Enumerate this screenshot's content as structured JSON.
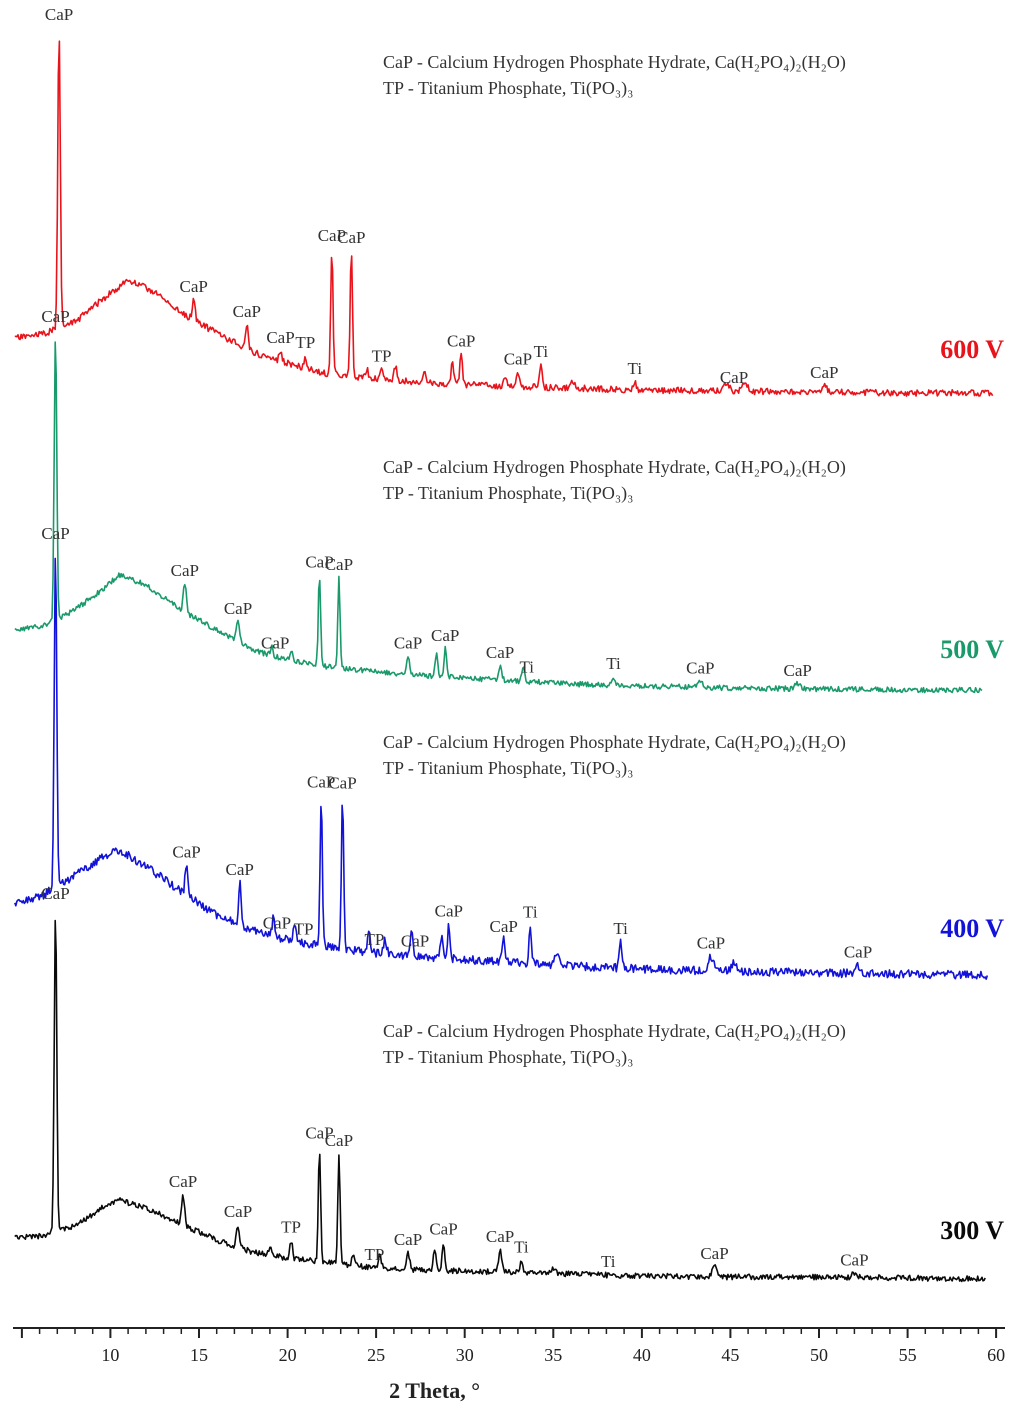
{
  "chart_data": {
    "type": "line",
    "xlabel": "2 Theta, °",
    "ylabel": "",
    "xlim": [
      4.5,
      60.5
    ],
    "x_ticks": [
      10,
      15,
      20,
      25,
      30,
      35,
      40,
      45,
      50,
      55,
      60
    ],
    "x_tick_labels": [
      "10",
      "15",
      "20",
      "25",
      "30",
      "35",
      "40",
      "45",
      "50",
      "55",
      "60"
    ],
    "legend_lines": [
      "CaP - Calcium Hydrogen Phosphate Hydrate, Ca(H₂PO₄)₂(H₂O)",
      "TP - Titanium Phosphate, Ti(PO₃)₃"
    ],
    "series": [
      {
        "name": "600 V",
        "color": "#e8131b",
        "x_range": [
          4.6,
          59.8
        ],
        "seed": 11,
        "noise": 3.2,
        "points": [
          [
            4.6,
            338
          ],
          [
            6.2,
            334
          ],
          [
            8,
            322
          ],
          [
            9.5,
            300
          ],
          [
            11,
            280
          ],
          [
            12.5,
            292
          ],
          [
            14,
            313
          ],
          [
            16,
            333
          ],
          [
            18,
            352
          ],
          [
            20,
            363
          ],
          [
            22,
            373
          ],
          [
            25,
            379
          ],
          [
            28,
            383
          ],
          [
            32,
            386
          ],
          [
            36,
            388
          ],
          [
            40,
            390
          ],
          [
            45,
            391
          ],
          [
            50,
            392
          ],
          [
            55,
            393
          ],
          [
            59.8,
            393
          ]
        ],
        "peaks": [
          [
            7.1,
            300,
            0.1
          ],
          [
            14.7,
            20,
            0.12
          ],
          [
            17.7,
            24,
            0.12
          ],
          [
            19.6,
            10,
            0.1
          ],
          [
            21.0,
            12,
            0.1
          ],
          [
            22.5,
            125,
            0.09
          ],
          [
            23.6,
            125,
            0.09
          ],
          [
            24.5,
            8,
            0.1
          ],
          [
            25.3,
            10,
            0.12
          ],
          [
            26.1,
            14,
            0.12
          ],
          [
            27.7,
            10,
            0.12
          ],
          [
            29.3,
            22,
            0.1
          ],
          [
            29.8,
            30,
            0.1
          ],
          [
            32.3,
            10,
            0.12
          ],
          [
            33.0,
            14,
            0.12
          ],
          [
            34.3,
            22,
            0.1
          ],
          [
            36.1,
            8,
            0.12
          ],
          [
            39.6,
            8,
            0.12
          ],
          [
            44.8,
            8,
            0.2
          ],
          [
            45.8,
            10,
            0.2
          ],
          [
            50.3,
            6,
            0.2
          ]
        ]
      },
      {
        "name": "500 V",
        "color": "#1a9a6b",
        "x_range": [
          4.6,
          59.2
        ],
        "seed": 23,
        "noise": 2.6,
        "points": [
          [
            4.6,
            630
          ],
          [
            6.2,
            626
          ],
          [
            8,
            610
          ],
          [
            9.5,
            590
          ],
          [
            10.5,
            575
          ],
          [
            12,
            585
          ],
          [
            14,
            610
          ],
          [
            16,
            630
          ],
          [
            18,
            650
          ],
          [
            20,
            660
          ],
          [
            22,
            666
          ],
          [
            25,
            672
          ],
          [
            28,
            676
          ],
          [
            32,
            680
          ],
          [
            36,
            684
          ],
          [
            40,
            686
          ],
          [
            45,
            688
          ],
          [
            50,
            689
          ],
          [
            55,
            690
          ],
          [
            59.2,
            690
          ]
        ],
        "peaks": [
          [
            6.9,
            290,
            0.1
          ],
          [
            14.2,
            28,
            0.12
          ],
          [
            17.2,
            20,
            0.12
          ],
          [
            19.1,
            10,
            0.1
          ],
          [
            20.2,
            10,
            0.1
          ],
          [
            21.8,
            90,
            0.09
          ],
          [
            22.9,
            90,
            0.09
          ],
          [
            26.8,
            18,
            0.12
          ],
          [
            28.4,
            22,
            0.1
          ],
          [
            28.9,
            28,
            0.1
          ],
          [
            32.0,
            14,
            0.12
          ],
          [
            33.3,
            16,
            0.12
          ],
          [
            38.4,
            8,
            0.12
          ],
          [
            43.3,
            6,
            0.2
          ],
          [
            48.8,
            5,
            0.2
          ]
        ]
      },
      {
        "name": "400 V",
        "color": "#1212d8",
        "x_range": [
          4.6,
          59.5
        ],
        "seed": 37,
        "noise": 4.2,
        "points": [
          [
            4.6,
            905
          ],
          [
            6.2,
            895
          ],
          [
            8,
            875
          ],
          [
            9.5,
            858
          ],
          [
            10.5,
            850
          ],
          [
            12,
            866
          ],
          [
            14,
            892
          ],
          [
            16,
            915
          ],
          [
            18,
            930
          ],
          [
            20,
            940
          ],
          [
            22,
            946
          ],
          [
            25,
            953
          ],
          [
            28,
            957
          ],
          [
            32,
            962
          ],
          [
            36,
            966
          ],
          [
            40,
            969
          ],
          [
            45,
            971
          ],
          [
            50,
            973
          ],
          [
            55,
            974
          ],
          [
            59.5,
            975
          ]
        ],
        "peaks": [
          [
            6.9,
            340,
            0.1
          ],
          [
            14.3,
            30,
            0.12
          ],
          [
            17.3,
            42,
            0.1
          ],
          [
            19.2,
            18,
            0.1
          ],
          [
            20.4,
            16,
            0.1
          ],
          [
            21.9,
            150,
            0.09
          ],
          [
            23.1,
            152,
            0.09
          ],
          [
            24.6,
            22,
            0.1
          ],
          [
            25.5,
            14,
            0.12
          ],
          [
            27.0,
            26,
            0.12
          ],
          [
            28.7,
            22,
            0.1
          ],
          [
            29.1,
            34,
            0.1
          ],
          [
            32.2,
            22,
            0.12
          ],
          [
            33.7,
            38,
            0.1
          ],
          [
            35.2,
            10,
            0.15
          ],
          [
            38.8,
            26,
            0.1
          ],
          [
            43.9,
            14,
            0.2
          ],
          [
            45.2,
            8,
            0.2
          ],
          [
            52.2,
            8,
            0.2
          ]
        ]
      },
      {
        "name": "300 V",
        "color": "#0a0a0a",
        "x_range": [
          4.6,
          59.4
        ],
        "seed": 53,
        "noise": 2.8,
        "points": [
          [
            4.6,
            1238
          ],
          [
            6.2,
            1236
          ],
          [
            8,
            1226
          ],
          [
            9.5,
            1208
          ],
          [
            10.5,
            1200
          ],
          [
            12,
            1208
          ],
          [
            14,
            1224
          ],
          [
            16,
            1240
          ],
          [
            18,
            1252
          ],
          [
            20,
            1258
          ],
          [
            22,
            1262
          ],
          [
            25,
            1268
          ],
          [
            28,
            1270
          ],
          [
            32,
            1272
          ],
          [
            36,
            1274
          ],
          [
            40,
            1276
          ],
          [
            45,
            1277
          ],
          [
            50,
            1277
          ],
          [
            55,
            1278
          ],
          [
            59.4,
            1279
          ]
        ],
        "peaks": [
          [
            6.9,
            325,
            0.1
          ],
          [
            14.1,
            30,
            0.12
          ],
          [
            17.2,
            22,
            0.12
          ],
          [
            19.0,
            8,
            0.1
          ],
          [
            20.2,
            18,
            0.1
          ],
          [
            21.8,
            115,
            0.09
          ],
          [
            22.9,
            110,
            0.09
          ],
          [
            23.7,
            10,
            0.1
          ],
          [
            25.2,
            12,
            0.12
          ],
          [
            26.8,
            16,
            0.12
          ],
          [
            28.3,
            22,
            0.1
          ],
          [
            28.8,
            28,
            0.1
          ],
          [
            32.0,
            22,
            0.12
          ],
          [
            33.2,
            12,
            0.12
          ],
          [
            35.0,
            6,
            0.15
          ],
          [
            44.1,
            10,
            0.2
          ],
          [
            52.0,
            4,
            0.2
          ]
        ]
      }
    ]
  },
  "legends": [
    {
      "series": "600 V",
      "lines": [
        "CaP - Calcium Hydrogen Phosphate Hydrate, Ca(H₂PO₄)₂(H₂O)",
        "TP - Titanium Phosphate, Ti(PO₃)₃"
      ]
    },
    {
      "series": "500 V",
      "lines": [
        "CaP - Calcium Hydrogen Phosphate Hydrate, Ca(H₂PO₄)₂(H₂O)",
        "TP - Titanium Phosphate, Ti(PO₃)₃"
      ]
    },
    {
      "series": "400 V",
      "lines": [
        "CaP - Calcium Hydrogen Phosphate Hydrate, Ca(H₂PO₄)₂(H₂O)",
        "TP - Titanium Phosphate, Ti(PO₃)₃"
      ]
    },
    {
      "series": "300 V",
      "lines": [
        "CaP - Calcium Hydrogen Phosphate Hydrate, Ca(H₂PO₄)₂(H₂O)",
        "TP - Titanium Phosphate, Ti(PO₃)₃"
      ]
    }
  ],
  "peak_labels": {
    "600 V": [
      {
        "x": 7.1,
        "text": "CaP"
      },
      {
        "x": 14.7,
        "text": "CaP"
      },
      {
        "x": 17.7,
        "text": "CaP"
      },
      {
        "x": 19.6,
        "text": "CaP"
      },
      {
        "x": 21.0,
        "text": "TP"
      },
      {
        "x": 22.5,
        "text": "CaP"
      },
      {
        "x": 23.6,
        "text": "CaP"
      },
      {
        "x": 25.3,
        "text": "TP"
      },
      {
        "x": 29.8,
        "text": "CaP"
      },
      {
        "x": 33.0,
        "text": "CaP"
      },
      {
        "x": 34.3,
        "text": "Ti"
      },
      {
        "x": 39.6,
        "text": "Ti"
      },
      {
        "x": 45.2,
        "text": "CaP"
      },
      {
        "x": 50.3,
        "text": "CaP"
      }
    ],
    "500 V": [
      {
        "x": 6.9,
        "text": "CaP"
      },
      {
        "x": 14.2,
        "text": "CaP"
      },
      {
        "x": 17.2,
        "text": "CaP"
      },
      {
        "x": 19.3,
        "text": "CaP"
      },
      {
        "x": 21.8,
        "text": "CaP"
      },
      {
        "x": 22.9,
        "text": "CaP"
      },
      {
        "x": 26.8,
        "text": "CaP"
      },
      {
        "x": 28.9,
        "text": "CaP"
      },
      {
        "x": 32.0,
        "text": "CaP"
      },
      {
        "x": 33.5,
        "text": "Ti"
      },
      {
        "x": 38.4,
        "text": "Ti"
      },
      {
        "x": 43.3,
        "text": "CaP"
      },
      {
        "x": 48.8,
        "text": "CaP"
      }
    ],
    "400 V": [
      {
        "x": 6.9,
        "text": "CaP"
      },
      {
        "x": 14.3,
        "text": "CaP"
      },
      {
        "x": 17.3,
        "text": "CaP"
      },
      {
        "x": 19.4,
        "text": "CaP"
      },
      {
        "x": 20.9,
        "text": "TP"
      },
      {
        "x": 21.9,
        "text": "CaP"
      },
      {
        "x": 23.1,
        "text": "CaP"
      },
      {
        "x": 24.9,
        "text": "TP"
      },
      {
        "x": 27.2,
        "text": "CaP"
      },
      {
        "x": 29.1,
        "text": "CaP"
      },
      {
        "x": 32.2,
        "text": "CaP"
      },
      {
        "x": 33.7,
        "text": "Ti"
      },
      {
        "x": 38.8,
        "text": "Ti"
      },
      {
        "x": 43.9,
        "text": "CaP"
      },
      {
        "x": 52.2,
        "text": "CaP"
      }
    ],
    "300 V": [
      {
        "x": 6.9,
        "text": "CaP"
      },
      {
        "x": 14.1,
        "text": "CaP"
      },
      {
        "x": 17.2,
        "text": "CaP"
      },
      {
        "x": 20.2,
        "text": "TP"
      },
      {
        "x": 21.8,
        "text": "CaP"
      },
      {
        "x": 22.9,
        "text": "CaP"
      },
      {
        "x": 24.9,
        "text": "TP"
      },
      {
        "x": 26.8,
        "text": "CaP"
      },
      {
        "x": 28.8,
        "text": "CaP"
      },
      {
        "x": 32.0,
        "text": "CaP"
      },
      {
        "x": 33.2,
        "text": "Ti"
      },
      {
        "x": 38.1,
        "text": "Ti"
      },
      {
        "x": 44.1,
        "text": "CaP"
      },
      {
        "x": 52.0,
        "text": "CaP"
      }
    ]
  }
}
